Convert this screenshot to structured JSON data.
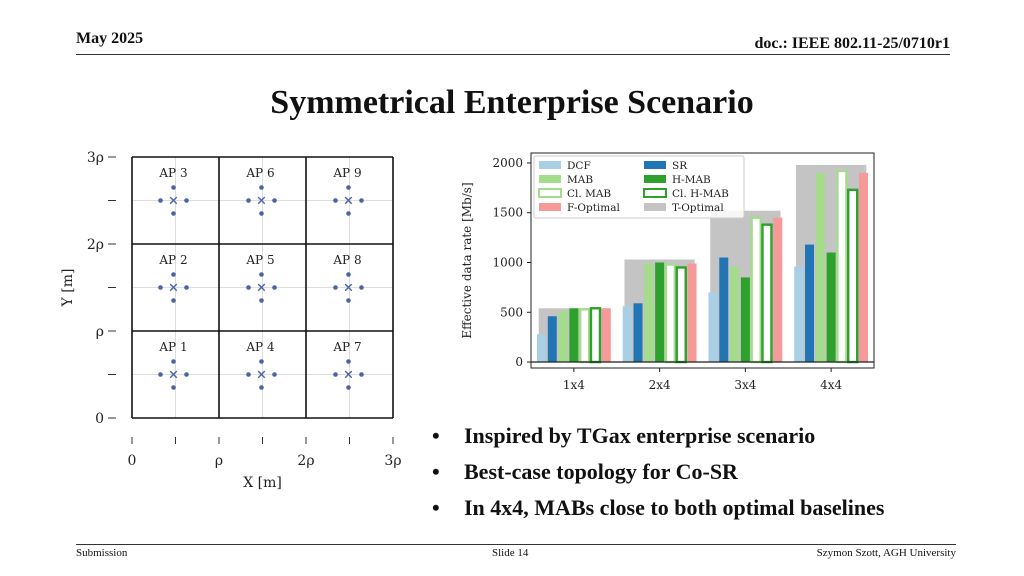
{
  "header": {
    "date": "May 2025",
    "doc": "doc.: IEEE 802.11-25/0710r1"
  },
  "title": "Symmetrical Enterprise Scenario",
  "topology": {
    "aps": [
      "AP 1",
      "AP 2",
      "AP 3",
      "AP 4",
      "AP 5",
      "AP 6",
      "AP 7",
      "AP 8",
      "AP 9"
    ],
    "ap_grid_columns": [
      [
        "AP 3",
        "AP 2",
        "AP 1"
      ],
      [
        "AP 6",
        "AP 5",
        "AP 4"
      ],
      [
        "AP 9",
        "AP 8",
        "AP 7"
      ]
    ],
    "xlabel": "X [m]",
    "ylabel": "Y [m]",
    "xticks": [
      "0",
      "ρ",
      "2ρ",
      "3ρ"
    ],
    "yticks": [
      "3ρ",
      "2ρ",
      "ρ",
      "0"
    ]
  },
  "chart_data": {
    "type": "bar",
    "categories": [
      "1x4",
      "2x4",
      "3x4",
      "4x4"
    ],
    "ylabel": "Effective data rate [Mb/s]",
    "ylim": [
      -60,
      2100
    ],
    "yticks": [
      0,
      500,
      1000,
      1500,
      2000
    ],
    "background_series": [
      {
        "name": "T-Optimal",
        "values": [
          540,
          1030,
          1520,
          1980
        ]
      }
    ],
    "series": [
      {
        "name": "DCF",
        "values": [
          280,
          560,
          700,
          960
        ]
      },
      {
        "name": "SR",
        "values": [
          460,
          590,
          1050,
          1180
        ]
      },
      {
        "name": "MAB",
        "values": [
          510,
          990,
          960,
          1900
        ]
      },
      {
        "name": "H-MAB",
        "values": [
          540,
          1000,
          850,
          1100
        ]
      },
      {
        "name": "Cl. MAB",
        "values": [
          530,
          980,
          1450,
          1920
        ]
      },
      {
        "name": "Cl. H-MAB",
        "values": [
          540,
          950,
          1380,
          1730
        ]
      },
      {
        "name": "F-Optimal",
        "values": [
          540,
          990,
          1450,
          1900
        ]
      }
    ],
    "legend": [
      "DCF",
      "SR",
      "MAB",
      "H-MAB",
      "Cl. MAB",
      "Cl. H-MAB",
      "F-Optimal",
      "T-Optimal"
    ],
    "colors": {
      "DCF": "#a8cfe5",
      "SR": "#2275b5",
      "MAB": "#a4dc8c",
      "H-MAB": "#2ea02c",
      "Cl. MAB": "#a4dc8c",
      "Cl. H-MAB": "#2ea02c",
      "F-Optimal": "#f59a98",
      "T-Optimal": "#c4c4c4"
    }
  },
  "bullets": [
    "Inspired by TGax enterprise scenario",
    "Best-case topology for Co-SR",
    "In 4x4, MABs close to both optimal baselines"
  ],
  "footer": {
    "left": "Submission",
    "center": "Slide 14",
    "right": "Szymon Szott, AGH University"
  }
}
